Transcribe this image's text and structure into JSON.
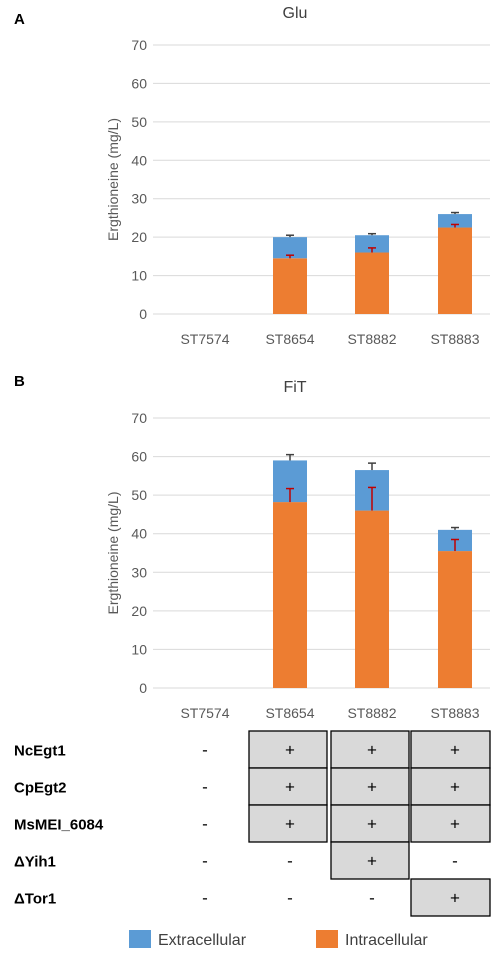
{
  "colors": {
    "extracellular": "#5B9BD5",
    "intracellular": "#ED7D31",
    "error_intra": "#C00000",
    "error_extra": "#404040",
    "gridline": "#D9D9D9",
    "table_fill": "#D9D9D9"
  },
  "chart_data": [
    {
      "panel": "A",
      "type": "bar",
      "stacked": true,
      "title": "Glu",
      "ylabel": "Ergthioneine (mg/L)",
      "xlabel": "",
      "ylim": [
        0,
        70
      ],
      "yticks": [
        0,
        10,
        20,
        30,
        40,
        50,
        60,
        70
      ],
      "grid": true,
      "categories": [
        "ST7574",
        "ST8654",
        "ST8882",
        "ST8883"
      ],
      "series": [
        {
          "name": "Intracellular",
          "values": [
            0,
            14.5,
            16,
            22.5
          ],
          "error": [
            0,
            0.8,
            1.2,
            0.8
          ]
        },
        {
          "name": "Extracellular",
          "values": [
            0,
            5.5,
            4.5,
            3.5
          ],
          "error": [
            0,
            0.5,
            0.4,
            0.4
          ]
        }
      ]
    },
    {
      "panel": "B",
      "type": "bar",
      "stacked": true,
      "title": "FiT",
      "ylabel": "Ergthioneine (mg/L)",
      "xlabel": "",
      "ylim": [
        0,
        70
      ],
      "yticks": [
        0,
        10,
        20,
        30,
        40,
        50,
        60,
        70
      ],
      "grid": true,
      "categories": [
        "ST7574",
        "ST8654",
        "ST8882",
        "ST8883"
      ],
      "series": [
        {
          "name": "Intracellular",
          "values": [
            0,
            48.2,
            46,
            35.5
          ],
          "error": [
            0,
            3.5,
            6,
            3
          ]
        },
        {
          "name": "Extracellular",
          "values": [
            0,
            10.8,
            10.5,
            5.5
          ],
          "error": [
            0,
            1.5,
            1.8,
            0.6
          ]
        }
      ]
    }
  ],
  "genotype_table": {
    "rows": [
      {
        "label": "NcEgt1",
        "values": [
          "-",
          "+",
          "+",
          "+"
        ],
        "boxed": [
          false,
          true,
          true,
          true
        ]
      },
      {
        "label": "CpEgt2",
        "values": [
          "-",
          "+",
          "+",
          "+"
        ],
        "boxed": [
          false,
          true,
          true,
          true
        ]
      },
      {
        "label": "MsMEI_6084",
        "values": [
          "-",
          "+",
          "+",
          "+"
        ],
        "boxed": [
          false,
          true,
          true,
          true
        ]
      },
      {
        "label": "ΔYih1",
        "values": [
          "-",
          "-",
          "+",
          "-"
        ],
        "boxed": [
          false,
          false,
          true,
          false
        ]
      },
      {
        "label": "ΔTor1",
        "values": [
          "-",
          "-",
          "-",
          "+"
        ],
        "boxed": [
          false,
          false,
          false,
          true
        ]
      }
    ]
  },
  "legend": {
    "position": "bottom",
    "items": [
      {
        "label": "Extracellular",
        "color": "#5B9BD5"
      },
      {
        "label": "Intracellular",
        "color": "#ED7D31"
      }
    ]
  }
}
